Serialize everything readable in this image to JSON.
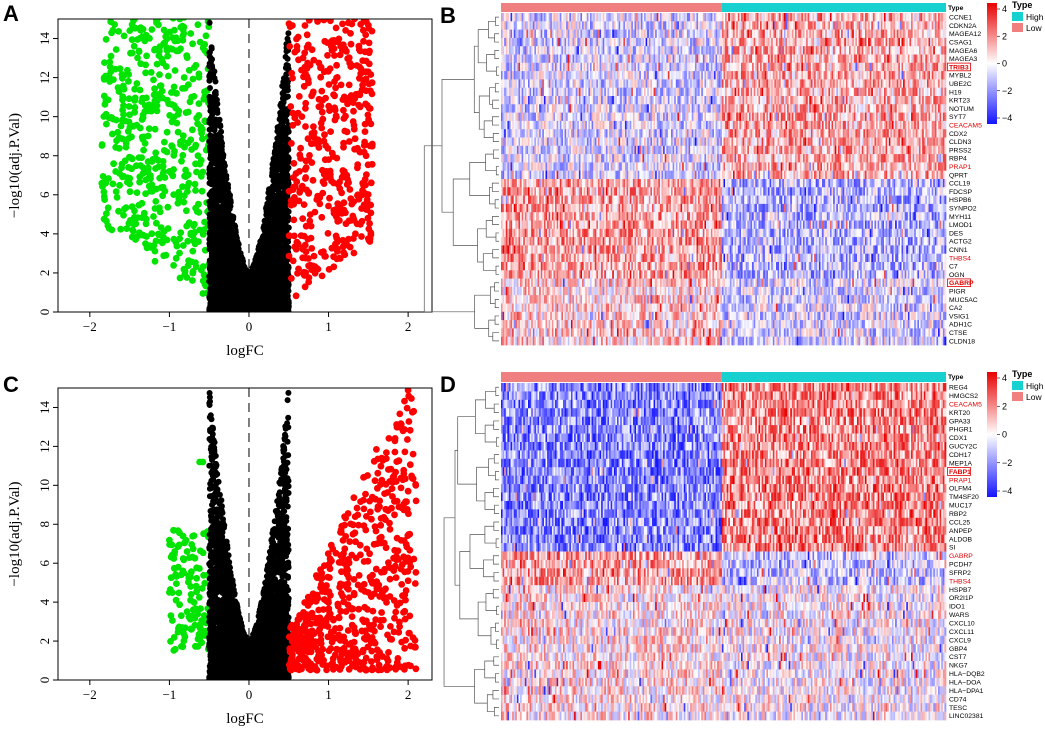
{
  "figure": {
    "panel_labels": [
      "A",
      "B",
      "C",
      "D"
    ],
    "colors": {
      "down": "#00e400",
      "up": "#ff0000",
      "ns": "#000000",
      "high": "#17d1d1",
      "low": "#f08080",
      "heat_low": "#1414ff",
      "heat_mid": "#ffffff",
      "heat_high": "#e80000",
      "highlight": "#e00000"
    }
  },
  "chart_data": [
    {
      "id": "A",
      "type": "scatter",
      "subtype": "volcano",
      "title": "",
      "xlabel": "logFC",
      "ylabel": "−log10(adj.P.Val)",
      "xlim": [
        -2.4,
        2.3
      ],
      "ylim": [
        0,
        15
      ],
      "xticks": [
        "−2",
        "−1",
        "0",
        "1",
        "2"
      ],
      "yticks": [
        "0",
        "2",
        "4",
        "6",
        "8",
        "10",
        "12",
        "14"
      ],
      "reference_x": 0,
      "series": [
        {
          "name": "down",
          "color": "#00e400",
          "x_range": [
            -1.85,
            -0.5
          ],
          "count": 520,
          "seed": 11
        },
        {
          "name": "ns",
          "color": "#000000",
          "x_range": [
            -0.5,
            0.5
          ],
          "count": 5200,
          "seed": 12
        },
        {
          "name": "up",
          "color": "#ff0000",
          "x_range": [
            0.5,
            1.55
          ],
          "count": 440,
          "seed": 13
        }
      ],
      "outliers": [
        [
          -1.8,
          6.6
        ],
        [
          -1.75,
          11.8
        ],
        [
          -1.65,
          9.2
        ],
        [
          -1.5,
          10.1
        ],
        [
          1.55,
          8.6
        ],
        [
          1.32,
          4.7
        ],
        [
          1.28,
          5.8
        ]
      ]
    },
    {
      "id": "B",
      "type": "heatmap",
      "legend_title": "Type",
      "legend": [
        "High",
        "Low"
      ],
      "colorbar_ticks": [
        "4",
        "2",
        "0",
        "−2",
        "−4"
      ],
      "annotation_title": "Type",
      "low_fraction": 0.495,
      "genes": [
        "CCNE1",
        "CDKN2A",
        "MAGEA12",
        "CSAG1",
        "MAGEA6",
        "MAGEA3",
        "TRIB3",
        "MYBL2",
        "UBE2C",
        "H19",
        "KRT23",
        "NOTUM",
        "SYT7",
        "CEACAM5",
        "CDX2",
        "CLDN3",
        "PRSS2",
        "RBP4",
        "PRAP1",
        "QPRT",
        "CCL19",
        "FDCSP",
        "HSPB6",
        "SYNPO2",
        "MYH11",
        "LMOD1",
        "DES",
        "ACTG2",
        "CNN1",
        "THBS4",
        "C7",
        "OGN",
        "GABRP",
        "PIGR",
        "MUC5AC",
        "CA2",
        "VSIG1",
        "ADH1C",
        "CTSE",
        "CLDN18"
      ],
      "highlighted": [
        "TRIB3",
        "CEACAM5",
        "PRAP1",
        "THBS4",
        "GABRP"
      ],
      "boxed": [
        "TRIB3",
        "GABRP"
      ]
    },
    {
      "id": "C",
      "type": "scatter",
      "subtype": "volcano",
      "title": "",
      "xlabel": "logFC",
      "ylabel": "−log10(adj.P.Val)",
      "xlim": [
        -2.4,
        2.3
      ],
      "ylim": [
        0,
        15
      ],
      "xticks": [
        "−2",
        "−1",
        "0",
        "1",
        "2"
      ],
      "yticks": [
        "0",
        "2",
        "4",
        "6",
        "8",
        "10",
        "12",
        "14"
      ],
      "reference_x": 0,
      "series": [
        {
          "name": "down",
          "color": "#00e400",
          "x_range": [
            -1.0,
            -0.5
          ],
          "count": 120,
          "seed": 21
        },
        {
          "name": "ns",
          "color": "#000000",
          "x_range": [
            -0.5,
            0.5
          ],
          "count": 4300,
          "seed": 22
        },
        {
          "name": "up",
          "color": "#ff0000",
          "x_range": [
            0.5,
            2.1
          ],
          "count": 620,
          "seed": 23
        }
      ],
      "outliers": [
        [
          -1.0,
          4.5
        ],
        [
          -0.62,
          11.2
        ],
        [
          -0.58,
          11.2
        ],
        [
          2.0,
          9.7
        ],
        [
          2.1,
          9.2
        ],
        [
          2.0,
          5.1
        ],
        [
          1.85,
          10.2
        ],
        [
          1.6,
          5.7
        ],
        [
          1.7,
          5.6
        ]
      ]
    },
    {
      "id": "D",
      "type": "heatmap",
      "legend_title": "Type",
      "legend": [
        "High",
        "Low"
      ],
      "colorbar_ticks": [
        "4",
        "2",
        "0",
        "−2",
        "−4"
      ],
      "annotation_title": "Type",
      "low_fraction": 0.495,
      "genes": [
        "REG4",
        "HMGCS2",
        "CEACAM5",
        "KRT20",
        "GPA33",
        "PHGR1",
        "CDX1",
        "GUCY2C",
        "CDH17",
        "MEP1A",
        "FABP1",
        "PRAP1",
        "OLFM4",
        "TM4SF20",
        "MUC17",
        "RBP2",
        "CCL25",
        "ANPEP",
        "ALDOB",
        "SI",
        "GABRP",
        "PCDH7",
        "SFRP2",
        "THBS4",
        "HSPB7",
        "OR2I1P",
        "IDO1",
        "WARS",
        "CXCL10",
        "CXCL11",
        "CXCL9",
        "GBP4",
        "CST7",
        "NKG7",
        "HLA−DQB2",
        "HLA−DOA",
        "HLA−DPA1",
        "CD74",
        "TESC",
        "LINC02381"
      ],
      "highlighted": [
        "CEACAM5",
        "FABP1",
        "PRAP1",
        "GABRP",
        "THBS4"
      ],
      "boxed": [
        "FABP1"
      ]
    }
  ]
}
